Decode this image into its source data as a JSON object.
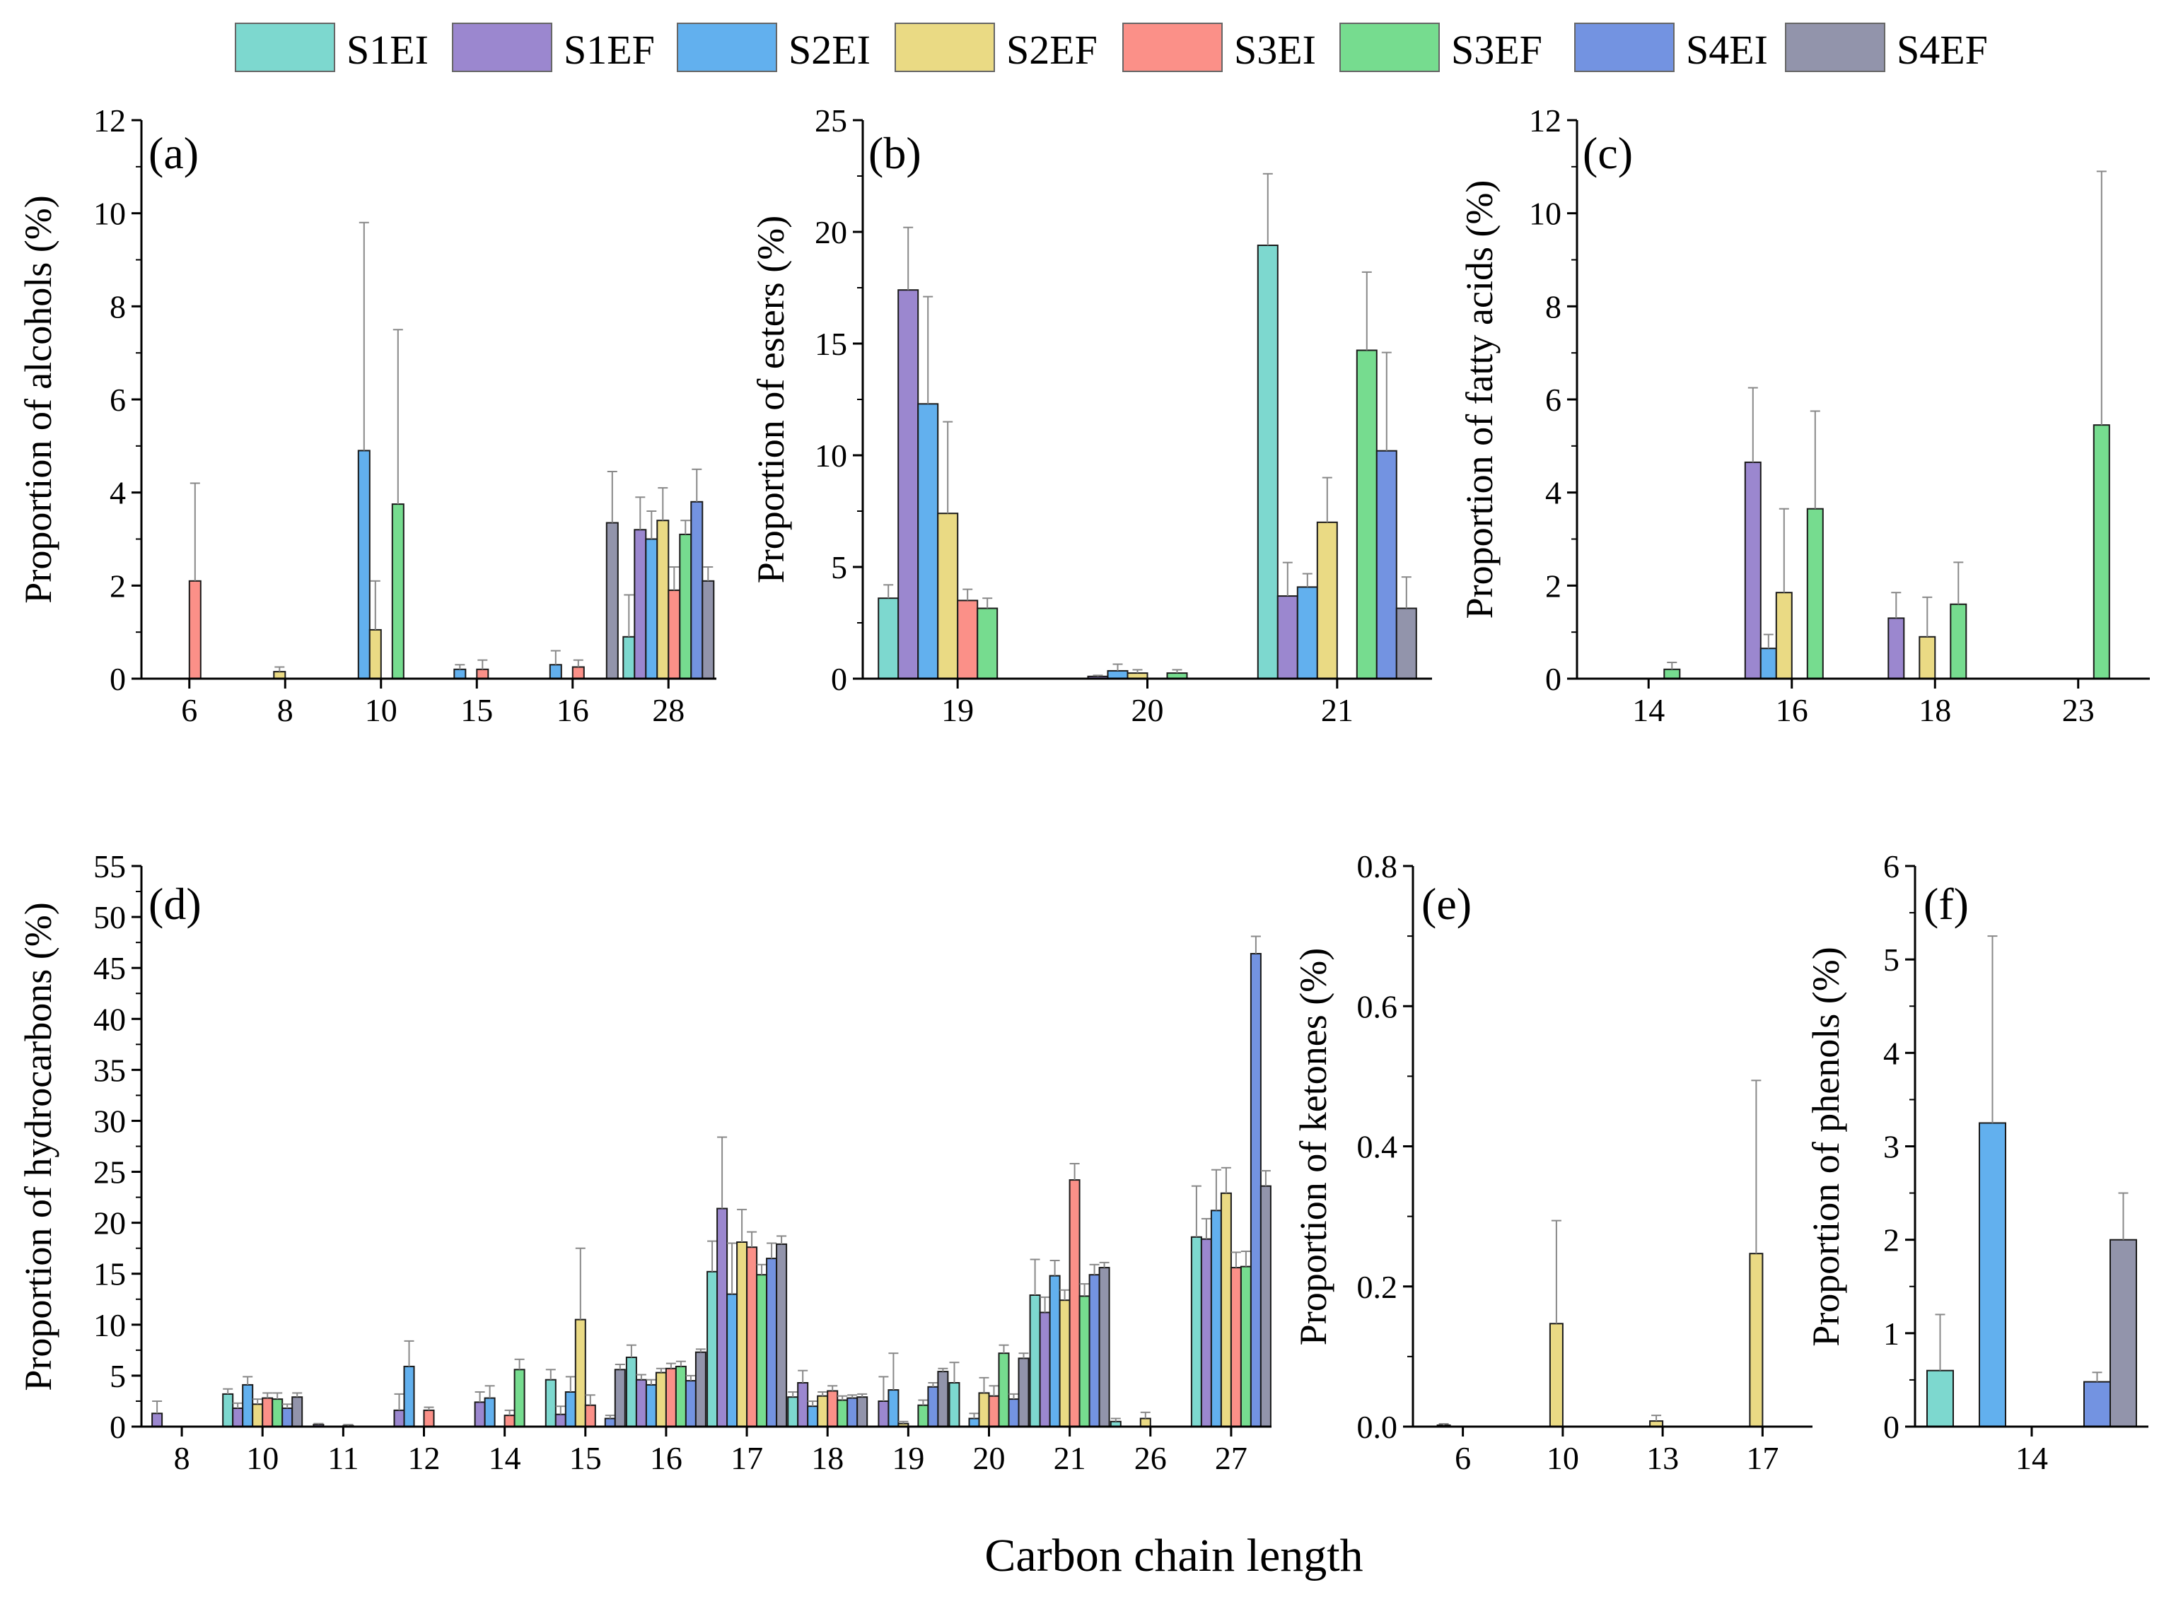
{
  "colors": {
    "S1EI": "#7dd8cf",
    "S1EF": "#9b87cf",
    "S2EI": "#62b0ee",
    "S2EF": "#eada84",
    "S3EI": "#fb9088",
    "S3EF": "#76dc8f",
    "S4EI": "#7393e1",
    "S4EF": "#9294ab",
    "errorbar": "#888888",
    "axis": "#000000"
  },
  "legend": [
    "S1EI",
    "S1EF",
    "S2EI",
    "S2EF",
    "S3EI",
    "S3EF",
    "S4EI",
    "S4EF"
  ],
  "global_xlabel": "Carbon chain length",
  "chart_data": [
    {
      "id": "a",
      "type": "bar",
      "panel_label": "(a)",
      "ylabel": "Proportion of alcohols (%)",
      "ylim": [
        0,
        12
      ],
      "yticks": [
        0,
        2,
        4,
        6,
        8,
        10,
        12
      ],
      "ytick_labels": [
        "0",
        "2",
        "4",
        "6",
        "8",
        "10",
        "12"
      ],
      "categories": [
        "6",
        "8",
        "10",
        "15",
        "16",
        "28"
      ],
      "series": [
        {
          "name": "S1EI",
          "values": [
            0,
            0,
            0,
            0,
            0,
            0.9
          ],
          "errors": [
            0,
            0,
            0,
            0,
            0,
            0.9
          ]
        },
        {
          "name": "S1EF",
          "values": [
            0,
            0,
            0,
            0,
            0,
            3.2
          ],
          "errors": [
            0,
            0,
            0,
            0,
            0,
            0.7
          ]
        },
        {
          "name": "S2EI",
          "values": [
            0,
            0,
            4.9,
            0.2,
            0.3,
            3.0
          ],
          "errors": [
            0,
            0,
            4.9,
            0.1,
            0.3,
            0.6
          ]
        },
        {
          "name": "S2EF",
          "values": [
            0,
            0.15,
            1.05,
            0,
            0,
            3.4
          ],
          "errors": [
            0,
            0.1,
            1.05,
            0,
            0,
            0.7
          ]
        },
        {
          "name": "S3EI",
          "values": [
            2.1,
            0,
            0,
            0.2,
            0.25,
            1.9
          ],
          "errors": [
            2.1,
            0,
            0,
            0.2,
            0.15,
            0.5
          ]
        },
        {
          "name": "S3EF",
          "values": [
            0,
            0,
            3.75,
            0,
            0,
            3.1
          ],
          "errors": [
            0,
            0,
            3.75,
            0,
            0,
            0.3
          ]
        },
        {
          "name": "S4EI",
          "values": [
            0,
            0,
            0,
            0,
            0,
            3.8
          ],
          "errors": [
            0,
            0,
            0,
            0,
            0,
            0.7
          ]
        },
        {
          "name": "S4EF",
          "values": [
            0,
            0,
            0,
            0,
            3.35,
            2.1
          ],
          "errors": [
            0,
            0,
            0,
            0,
            1.1,
            0.3
          ]
        }
      ]
    },
    {
      "id": "b",
      "type": "bar",
      "panel_label": "(b)",
      "ylabel": "Proportion of esters (%)",
      "ylim": [
        0,
        25
      ],
      "yticks": [
        0,
        5,
        10,
        15,
        20,
        25
      ],
      "ytick_labels": [
        "0",
        "5",
        "10",
        "15",
        "20",
        "25"
      ],
      "categories": [
        "19",
        "20",
        "21"
      ],
      "series": [
        {
          "name": "S1EI",
          "values": [
            3.6,
            0,
            19.4
          ],
          "errors": [
            0.6,
            0,
            3.2
          ]
        },
        {
          "name": "S1EF",
          "values": [
            17.4,
            0.1,
            3.7
          ],
          "errors": [
            2.8,
            0.05,
            1.5
          ]
        },
        {
          "name": "S2EI",
          "values": [
            12.3,
            0.35,
            4.1
          ],
          "errors": [
            4.8,
            0.3,
            0.6
          ]
        },
        {
          "name": "S2EF",
          "values": [
            7.4,
            0.25,
            7.0
          ],
          "errors": [
            4.1,
            0.15,
            2.0
          ]
        },
        {
          "name": "S3EI",
          "values": [
            3.5,
            0,
            0
          ],
          "errors": [
            0.5,
            0,
            0
          ]
        },
        {
          "name": "S3EF",
          "values": [
            3.15,
            0.25,
            14.7
          ],
          "errors": [
            0.45,
            0.15,
            3.5
          ]
        },
        {
          "name": "S4EI",
          "values": [
            0,
            0,
            10.2
          ],
          "errors": [
            0,
            0,
            4.4
          ]
        },
        {
          "name": "S4EF",
          "values": [
            0,
            0,
            3.15
          ],
          "errors": [
            0,
            0,
            1.4
          ]
        }
      ]
    },
    {
      "id": "c",
      "type": "bar",
      "panel_label": "(c)",
      "ylabel": "Proportion of fatty acids (%)",
      "ylim": [
        0,
        12
      ],
      "yticks": [
        0,
        2,
        4,
        6,
        8,
        10,
        12
      ],
      "ytick_labels": [
        "0",
        "2",
        "4",
        "6",
        "8",
        "10",
        "12"
      ],
      "categories": [
        "14",
        "16",
        "18",
        "23"
      ],
      "series": [
        {
          "name": "S1EI",
          "values": [
            0,
            0,
            0,
            0
          ],
          "errors": [
            0,
            0,
            0,
            0
          ]
        },
        {
          "name": "S1EF",
          "values": [
            0,
            4.65,
            1.3,
            0
          ],
          "errors": [
            0,
            1.6,
            0.55,
            0
          ]
        },
        {
          "name": "S2EI",
          "values": [
            0,
            0.65,
            0,
            0
          ],
          "errors": [
            0,
            0.3,
            0,
            0
          ]
        },
        {
          "name": "S2EF",
          "values": [
            0,
            1.85,
            0.9,
            0
          ],
          "errors": [
            0,
            1.8,
            0.85,
            0
          ]
        },
        {
          "name": "S3EI",
          "values": [
            0,
            0,
            0,
            0
          ],
          "errors": [
            0,
            0,
            0,
            0
          ]
        },
        {
          "name": "S3EF",
          "values": [
            0.2,
            3.65,
            1.6,
            5.45
          ],
          "errors": [
            0.15,
            2.1,
            0.9,
            5.45
          ]
        },
        {
          "name": "S4EI",
          "values": [
            0,
            0,
            0,
            0
          ],
          "errors": [
            0,
            0,
            0,
            0
          ]
        },
        {
          "name": "S4EF",
          "values": [
            0,
            0,
            0,
            0
          ],
          "errors": [
            0,
            0,
            0,
            0
          ]
        }
      ]
    },
    {
      "id": "d",
      "type": "bar",
      "panel_label": "(d)",
      "ylabel": "Proportion of hydrocarbons (%)",
      "ylim": [
        0,
        55
      ],
      "yticks": [
        0,
        5,
        10,
        15,
        20,
        25,
        30,
        35,
        40,
        45,
        50,
        55
      ],
      "ytick_labels": [
        "0",
        "5",
        "10",
        "15",
        "20",
        "25",
        "30",
        "35",
        "40",
        "45",
        "50",
        "55"
      ],
      "categories": [
        "8",
        "10",
        "11",
        "12",
        "14",
        "15",
        "16",
        "17",
        "18",
        "19",
        "20",
        "21",
        "26",
        "27"
      ],
      "series": [
        {
          "name": "S1EI",
          "values": [
            0,
            3.2,
            0,
            0,
            0,
            4.6,
            6.8,
            15.2,
            2.9,
            0,
            4.3,
            12.9,
            0.5,
            18.6
          ],
          "errors": [
            0,
            0.5,
            0,
            0,
            0,
            1.0,
            1.2,
            3.0,
            0.5,
            0,
            2.0,
            3.5,
            0.3,
            5.0
          ]
        },
        {
          "name": "S1EF",
          "values": [
            1.3,
            1.8,
            0.2,
            1.6,
            2.4,
            1.2,
            4.6,
            21.4,
            4.3,
            2.5,
            0,
            11.2,
            0,
            18.4
          ],
          "errors": [
            1.2,
            0.5,
            0.1,
            1.6,
            1.0,
            0.8,
            0.5,
            7.0,
            1.2,
            2.4,
            0,
            1.5,
            0,
            2.0
          ]
        },
        {
          "name": "S2EI",
          "values": [
            0,
            4.1,
            0,
            5.9,
            2.8,
            3.4,
            4.1,
            13.0,
            2.0,
            3.6,
            0.8,
            14.8,
            0,
            21.2
          ],
          "errors": [
            0,
            0.8,
            0,
            2.5,
            1.2,
            1.5,
            0.5,
            5.0,
            0.5,
            3.6,
            0.5,
            1.5,
            0,
            4.0
          ]
        },
        {
          "name": "S2EF",
          "values": [
            0,
            2.2,
            0,
            0,
            0,
            10.5,
            5.3,
            18.1,
            3.0,
            0.3,
            3.3,
            12.4,
            0.8,
            22.9
          ],
          "errors": [
            0,
            0.5,
            0,
            0,
            0,
            7.0,
            0.4,
            3.2,
            0.4,
            0.2,
            1.5,
            1.0,
            0.6,
            2.5
          ]
        },
        {
          "name": "S3EI",
          "values": [
            0,
            2.8,
            0.1,
            1.6,
            1.1,
            2.1,
            5.7,
            17.6,
            3.5,
            0,
            3.0,
            24.2,
            0,
            15.6
          ],
          "errors": [
            0,
            0.5,
            0.1,
            0.3,
            0.5,
            1.0,
            0.5,
            1.5,
            0.5,
            0,
            1.0,
            1.6,
            0,
            1.5
          ]
        },
        {
          "name": "S3EF",
          "values": [
            0,
            2.7,
            0,
            0,
            5.6,
            0,
            5.9,
            14.9,
            2.6,
            2.1,
            7.2,
            12.8,
            0,
            15.7
          ],
          "errors": [
            0,
            0.6,
            0,
            0,
            1.0,
            0,
            0.5,
            1.0,
            0.4,
            0.5,
            0.8,
            1.2,
            0,
            1.5
          ]
        },
        {
          "name": "S4EI",
          "values": [
            0,
            1.8,
            0,
            0,
            0,
            0.8,
            4.5,
            16.5,
            2.8,
            3.9,
            2.7,
            14.9,
            0,
            46.4
          ],
          "errors": [
            0,
            0.4,
            0,
            0,
            0,
            0.3,
            0.5,
            1.5,
            0.3,
            0.4,
            0.5,
            1.0,
            0,
            1.7
          ]
        },
        {
          "name": "S4EF",
          "values": [
            0,
            2.9,
            0,
            0,
            0,
            5.6,
            7.3,
            17.9,
            2.9,
            5.4,
            6.7,
            15.6,
            0,
            23.6
          ],
          "errors": [
            0,
            0.4,
            0,
            0,
            0,
            0.5,
            0.3,
            0.8,
            0.3,
            0.3,
            0.5,
            0.5,
            0,
            1.5
          ]
        }
      ]
    },
    {
      "id": "e",
      "type": "bar",
      "panel_label": "(e)",
      "ylabel": "Proportion of ketones (%)",
      "ylim": [
        0,
        0.8
      ],
      "yticks": [
        0,
        0.2,
        0.4,
        0.6,
        0.8
      ],
      "ytick_labels": [
        "0.0",
        "0.2",
        "0.4",
        "0.6",
        "0.8"
      ],
      "categories": [
        "6",
        "10",
        "13",
        "17"
      ],
      "series": [
        {
          "name": "S1EI",
          "values": [
            0,
            0,
            0,
            0
          ],
          "errors": [
            0,
            0,
            0,
            0
          ]
        },
        {
          "name": "S1EF",
          "values": [
            0,
            0,
            0,
            0
          ],
          "errors": [
            0,
            0,
            0,
            0
          ]
        },
        {
          "name": "S2EI",
          "values": [
            0.002,
            0,
            0,
            0
          ],
          "errors": [
            0.002,
            0,
            0,
            0
          ]
        },
        {
          "name": "S2EF",
          "values": [
            0,
            0.147,
            0.008,
            0.247
          ],
          "errors": [
            0,
            0.147,
            0.008,
            0.247
          ]
        },
        {
          "name": "S3EI",
          "values": [
            0,
            0,
            0,
            0
          ],
          "errors": [
            0,
            0,
            0,
            0
          ]
        },
        {
          "name": "S3EF",
          "values": [
            0,
            0,
            0,
            0
          ],
          "errors": [
            0,
            0,
            0,
            0
          ]
        },
        {
          "name": "S4EI",
          "values": [
            0,
            0,
            0,
            0
          ],
          "errors": [
            0,
            0,
            0,
            0
          ]
        },
        {
          "name": "S4EF",
          "values": [
            0,
            0,
            0,
            0
          ],
          "errors": [
            0,
            0,
            0,
            0
          ]
        }
      ]
    },
    {
      "id": "f",
      "type": "bar",
      "panel_label": "(f)",
      "ylabel": "Proportion of phenols (%)",
      "ylim": [
        0,
        6
      ],
      "yticks": [
        0,
        1,
        2,
        3,
        4,
        5,
        6
      ],
      "ytick_labels": [
        "0",
        "1",
        "2",
        "3",
        "4",
        "5",
        "6"
      ],
      "categories": [
        "14"
      ],
      "series": [
        {
          "name": "S1EI",
          "values": [
            0.6
          ],
          "errors": [
            0.6
          ]
        },
        {
          "name": "S1EF",
          "values": [
            0
          ],
          "errors": [
            0
          ]
        },
        {
          "name": "S2EI",
          "values": [
            3.25
          ],
          "errors": [
            2.0
          ]
        },
        {
          "name": "S2EF",
          "values": [
            0
          ],
          "errors": [
            0
          ]
        },
        {
          "name": "S3EI",
          "values": [
            0
          ],
          "errors": [
            0
          ]
        },
        {
          "name": "S3EF",
          "values": [
            0
          ],
          "errors": [
            0
          ]
        },
        {
          "name": "S4EI",
          "values": [
            0.48
          ],
          "errors": [
            0.1
          ]
        },
        {
          "name": "S4EF",
          "values": [
            2.0
          ],
          "errors": [
            0.5
          ]
        }
      ]
    }
  ]
}
